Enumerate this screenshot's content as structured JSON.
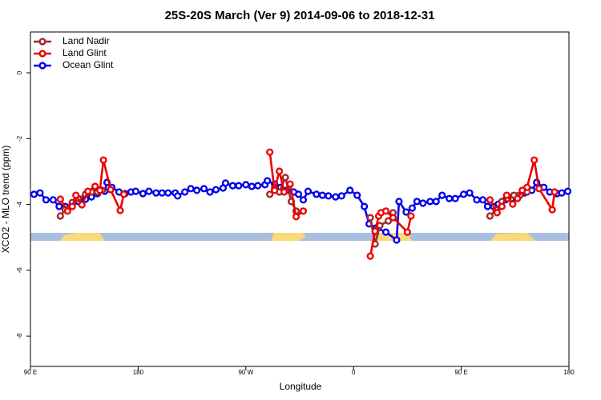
{
  "chart_data": {
    "type": "line",
    "title": "25S-20S March (Ver 9)   2014-09-06 to 2018-12-31",
    "xlabel": "Longitude",
    "ylabel": "XCO2 - MLO trend (ppm)",
    "xlim": [
      90,
      540
    ],
    "ylim": [
      -8.92,
      1.24
    ],
    "xticks": [
      {
        "value": 90,
        "label": "90 E"
      },
      {
        "value": 180,
        "label": "180"
      },
      {
        "value": 270,
        "label": "90 W"
      },
      {
        "value": 360,
        "label": "0"
      },
      {
        "value": 450,
        "label": "90 E"
      },
      {
        "value": 540,
        "label": "180"
      }
    ],
    "yticks": [
      -8,
      -6,
      -4,
      -2,
      0
    ],
    "legend": "top-left",
    "series": [
      {
        "name": "Land Nadir",
        "color": "#a0282a",
        "x": [
          115,
          119,
          125,
          130,
          136,
          141,
          146,
          150,
          null,
          290,
          294,
          298,
          303,
          308,
          312,
          null,
          374,
          378,
          382,
          389,
          393,
          null,
          474,
          479,
          484,
          489,
          494,
          499,
          505
        ],
        "values": [
          -4.35,
          -4.16,
          -3.94,
          -3.82,
          -3.69,
          -3.62,
          -3.62,
          -3.57,
          null,
          -3.69,
          -3.5,
          -3.62,
          -3.18,
          -3.91,
          -4.2,
          null,
          -4.4,
          -5.2,
          -4.64,
          -4.5,
          -4.25,
          null,
          -4.35,
          -4.16,
          -3.91,
          -3.82,
          -3.72,
          -3.72,
          -3.62
        ]
      },
      {
        "name": "Land Glint",
        "color": "#ee0000",
        "x": [
          115,
          121,
          125,
          128,
          133,
          138,
          144,
          148,
          151,
          157,
          165,
          168,
          null,
          290,
          294,
          298,
          302,
          307,
          312,
          318,
          null,
          374,
          378,
          381,
          383,
          387,
          393,
          405,
          408,
          null,
          474,
          480,
          484,
          488,
          493,
          497,
          501,
          505,
          511,
          515,
          526,
          528
        ],
        "values": [
          -3.84,
          -4.2,
          -4.06,
          -3.72,
          -4.01,
          -3.6,
          -3.45,
          -3.57,
          -2.65,
          -3.55,
          -4.18,
          -3.69,
          null,
          -2.41,
          -3.57,
          -2.99,
          -3.62,
          -3.38,
          -4.37,
          -4.2,
          null,
          -5.57,
          -4.81,
          -4.35,
          -4.25,
          -4.2,
          -4.4,
          -4.84,
          -4.35,
          null,
          -3.86,
          -4.25,
          -4.06,
          -3.72,
          -3.99,
          -3.82,
          -3.57,
          -3.48,
          -2.65,
          -3.52,
          -4.16,
          -3.62
        ]
      },
      {
        "name": "Ocean Glint",
        "color": "#0000ee",
        "x": [
          93,
          98,
          103,
          109,
          114,
          119,
          125,
          130,
          136,
          141,
          146,
          152,
          154,
          158,
          164,
          169,
          174,
          178,
          184,
          189,
          195,
          200,
          205,
          211,
          213,
          219,
          224,
          229,
          235,
          240,
          245,
          251,
          253,
          259,
          264,
          270,
          275,
          280,
          286,
          288,
          294,
          299,
          304,
          310,
          314,
          318,
          322,
          329,
          334,
          339,
          345,
          350,
          357,
          363,
          369,
          373,
          379,
          387,
          396,
          398,
          404,
          409,
          413,
          418,
          424,
          429,
          434,
          440,
          445,
          452,
          457,
          463,
          468,
          472,
          477,
          481,
          487,
          492,
          497,
          503,
          509,
          513,
          519,
          524,
          530,
          534,
          539
        ],
        "values": [
          -3.69,
          -3.65,
          -3.86,
          -3.86,
          -4.06,
          -4.06,
          -3.99,
          -3.91,
          -3.84,
          -3.77,
          -3.67,
          -3.6,
          -3.33,
          -3.48,
          -3.62,
          -3.67,
          -3.62,
          -3.6,
          -3.67,
          -3.6,
          -3.65,
          -3.65,
          -3.65,
          -3.65,
          -3.74,
          -3.62,
          -3.52,
          -3.57,
          -3.52,
          -3.62,
          -3.55,
          -3.5,
          -3.35,
          -3.43,
          -3.43,
          -3.4,
          -3.45,
          -3.43,
          -3.4,
          -3.28,
          -3.38,
          -3.48,
          -3.57,
          -3.62,
          -3.69,
          -3.86,
          -3.6,
          -3.69,
          -3.72,
          -3.74,
          -3.77,
          -3.74,
          -3.57,
          -3.72,
          -4.06,
          -4.59,
          -4.71,
          -4.84,
          -5.08,
          -3.91,
          -4.23,
          -4.11,
          -3.91,
          -3.96,
          -3.91,
          -3.91,
          -3.72,
          -3.82,
          -3.82,
          -3.69,
          -3.65,
          -3.86,
          -3.86,
          -4.06,
          -4.06,
          -3.99,
          -3.86,
          -3.82,
          -3.74,
          -3.65,
          -3.57,
          -3.33,
          -3.48,
          -3.62,
          -3.67,
          -3.65,
          -3.6
        ]
      }
    ]
  }
}
